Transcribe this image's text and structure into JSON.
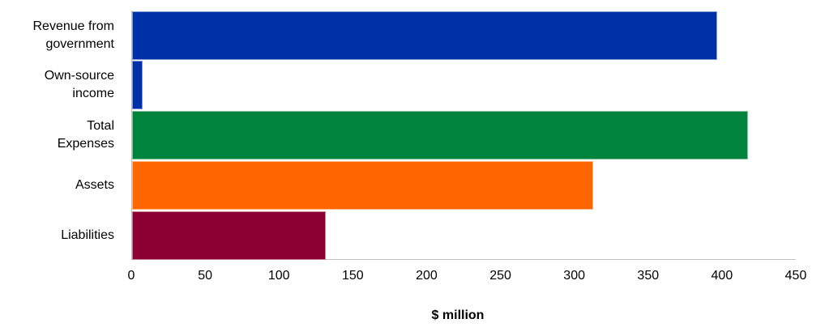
{
  "chart_data": {
    "type": "bar",
    "orientation": "horizontal",
    "title": "",
    "xlabel": "$ million",
    "ylabel": "",
    "xlim": [
      0,
      450
    ],
    "x_ticks": [
      0,
      50,
      100,
      150,
      200,
      250,
      300,
      350,
      400,
      450
    ],
    "grid": false,
    "legend": null,
    "categories": [
      "Revenue from government",
      "Own-source income",
      "Total Expenses",
      "Assets",
      "Liabilities"
    ],
    "category_lines": [
      [
        "Revenue from",
        "government"
      ],
      [
        "Own-source",
        "income"
      ],
      [
        "Total",
        "Expenses"
      ],
      [
        "Assets"
      ],
      [
        "Liabilities"
      ]
    ],
    "values": [
      396,
      7,
      417,
      312,
      131
    ],
    "colors": [
      "#0030a8",
      "#0030a8",
      "#00843d",
      "#ff6600",
      "#8b0030"
    ]
  },
  "x_tick_labels": [
    "0",
    "50",
    "100",
    "150",
    "200",
    "250",
    "300",
    "350",
    "400",
    "450"
  ],
  "axis_title": "$ million",
  "labels": {
    "c0": "Revenue from\ngovernment",
    "c1": "Own-source\nincome",
    "c2": "Total\nExpenses",
    "c3": "Assets",
    "c4": "Liabilities"
  }
}
